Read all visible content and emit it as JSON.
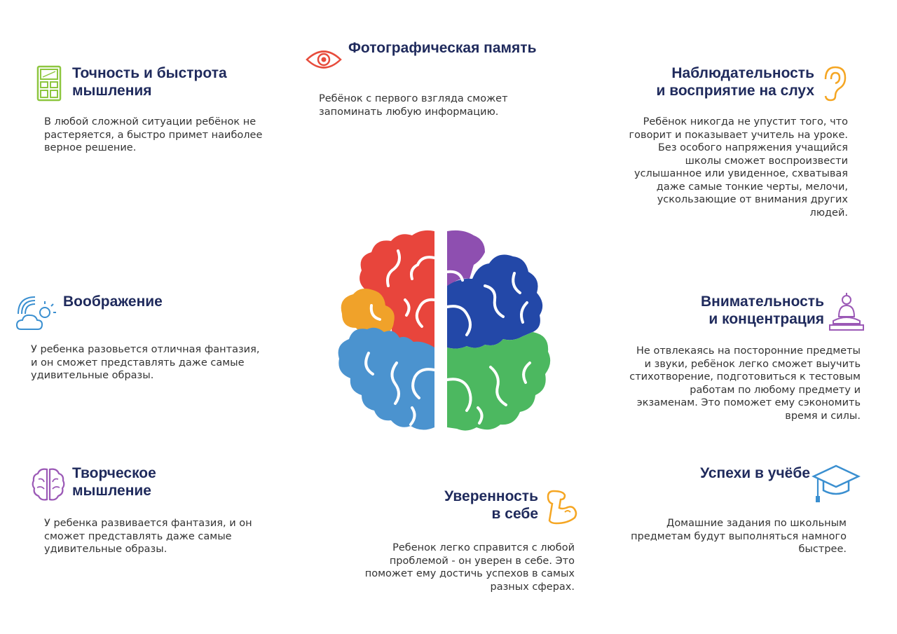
{
  "blocks": {
    "accuracy": {
      "title": "Точность и быстрота\nмышления",
      "text": "В любой сложной ситуации ребёнок не\nрастеряется, а быстро примет наиболее\nверное решение."
    },
    "photo_memory": {
      "title": "Фотографическая память",
      "text": "Ребёнок с первого взгляда сможет\nзапоминать любую информацию."
    },
    "observation": {
      "title": "Наблюдательность\nи восприятие на слух",
      "text": "Ребёнок никогда не упустит того, что\nговорит и показывает учитель на уроке.\nБез особого напряжения учащийся\nшколы сможет воспроизвести\nуслышанное или увиденное, схватывая\nдаже самые тонкие черты, мелочи,\nускользающие от внимания других\nлюдей."
    },
    "imagination": {
      "title": "Воображение",
      "text": "У ребенка разовьется отличная фантазия,\nи он сможет представлять даже самые\nудивительные образы."
    },
    "attention": {
      "title": "Внимательность\nи концентрация",
      "text": "Не отвлекаясь на посторонние предметы\nи звуки, ребёнок легко сможет выучить\nстихотворение, подготовиться к тестовым\nработам по любому предмету и\nэкзаменам. Это поможет ему сэкономить\nвремя и силы."
    },
    "creative": {
      "title": "Творческое\nмышление",
      "text": "У ребенка развивается фантазия, и он\nсможет представлять даже самые\nудивительные образы."
    },
    "confidence": {
      "title": "Уверенность\nв себе",
      "text": "Ребенок легко справится с любой\nпроблемой - он уверен в себе. Это\nпоможет ему достичь успехов в самых\nразных сферах."
    },
    "success": {
      "title": "Успехи в учёбе",
      "text": "Домашние задания по школьным\nпредметам будут выполняться намного\nбыстрее."
    }
  },
  "icons": {
    "accuracy": "calculator-icon",
    "photo_memory": "eye-icon",
    "observation": "ear-icon",
    "imagination": "cloud-rainbow-icon",
    "attention": "buddha-icon",
    "creative": "brain-outline-icon",
    "confidence": "muscle-arm-icon",
    "success": "graduation-cap-icon",
    "center": "brain-icon"
  },
  "colors": {
    "title": "#1f2a5c",
    "red": "#e8453c",
    "orange": "#f0a22a",
    "light_blue": "#4b93cf",
    "purple": "#8e4fb0",
    "dark_blue": "#2348a8",
    "green": "#4cb860",
    "icon_green": "#8dc63f",
    "icon_orange": "#f5a623",
    "icon_purple": "#9b59b6",
    "icon_red": "#e74c3c",
    "icon_blue": "#3a8fd0"
  }
}
